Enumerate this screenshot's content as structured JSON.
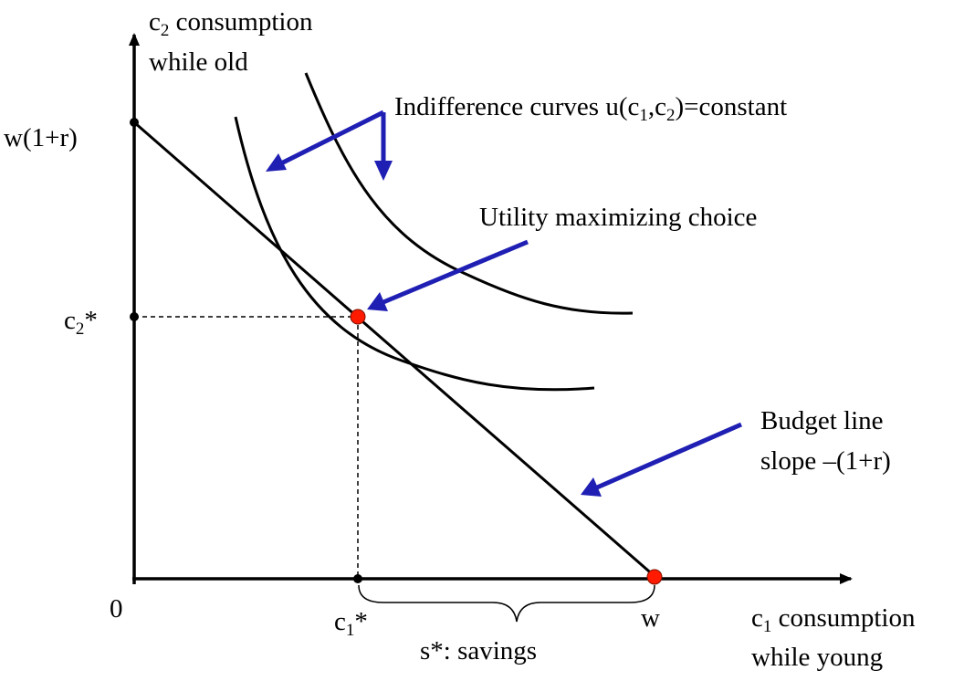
{
  "y_axis": {
    "label_base": "c",
    "label_sub": "2",
    "label_rest": " consumption",
    "label_line2": "while old"
  },
  "x_axis": {
    "label_base": "c",
    "label_sub": "1",
    "label_rest": " consumption",
    "label_line2": "while young"
  },
  "ticks": {
    "origin": "0",
    "y_intercept": "w(1+r)",
    "c2_star_base": "c",
    "c2_star_sub": "2",
    "c2_star_rest": "*",
    "c1_star_base": "c",
    "c1_star_sub": "1",
    "c1_star_rest": "*",
    "w": "w"
  },
  "annotations": {
    "indifference_pre": "Indifference curves u(c",
    "indifference_sub1": "1",
    "indifference_mid": ",c",
    "indifference_sub2": "2",
    "indifference_post": ")=constant",
    "utility": "Utility maximizing choice",
    "budget_line1": "Budget line",
    "budget_line2": "slope –(1+r)",
    "savings": "s*: savings"
  },
  "colors": {
    "arrow": "#1f1fb4",
    "point": "#ff1a00",
    "line": "#000000"
  }
}
